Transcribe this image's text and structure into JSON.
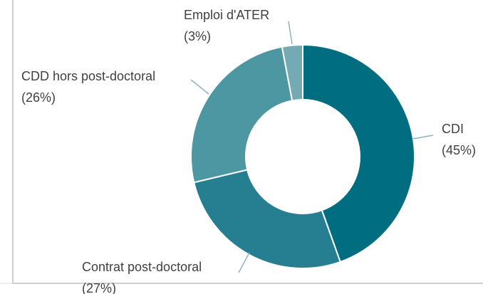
{
  "chart_data": {
    "type": "donut",
    "categories": [
      "CDI",
      "Contrat post-doctoral",
      "CDD hors post-doctoral",
      "Emploi d'ATER"
    ],
    "values": [
      45,
      27,
      26,
      3
    ],
    "value_labels": [
      "(45%)",
      "(27%)",
      "(26%)",
      "(3%)"
    ],
    "colors": [
      "#006d80",
      "#267f91",
      "#4d97a3",
      "#74aab3"
    ]
  }
}
